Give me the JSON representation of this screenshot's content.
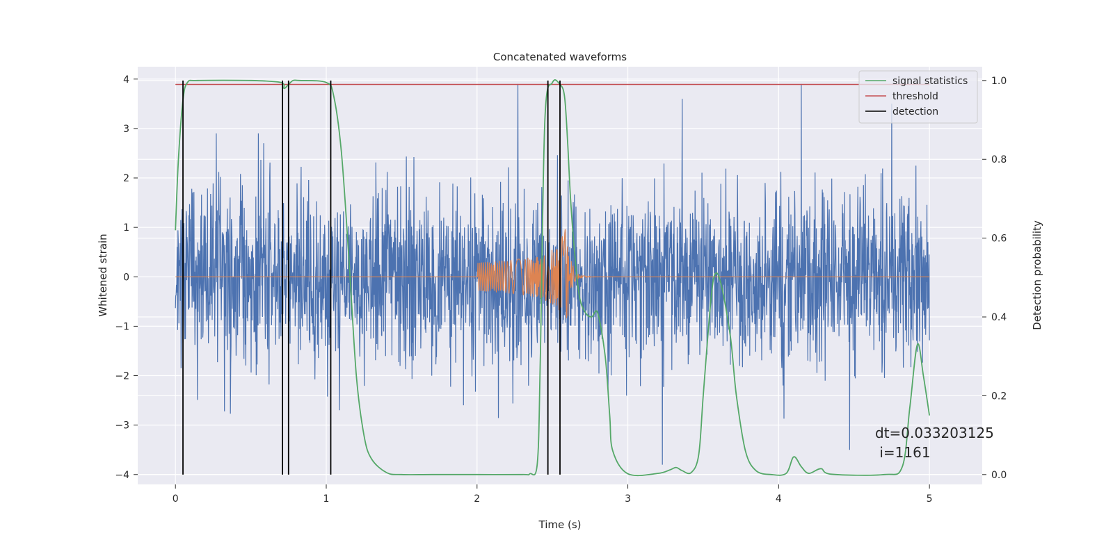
{
  "chart_data": {
    "type": "line",
    "title": "Concatenated waveforms",
    "xlabel": "Time (s)",
    "ylabel": "Whitened strain",
    "y2label": "Detection probability",
    "xlim": [
      -0.25,
      5.35
    ],
    "ylim": [
      -4.2,
      4.25
    ],
    "y2lim": [
      -0.025,
      1.035
    ],
    "xticks": [
      0,
      1,
      2,
      3,
      4,
      5
    ],
    "yticks": [
      -4,
      -3,
      -2,
      -1,
      0,
      1,
      2,
      3,
      4
    ],
    "y2ticks": [
      0.0,
      0.2,
      0.4,
      0.6,
      0.8,
      1.0
    ],
    "y2ticklabels": [
      "0.0",
      "0.2",
      "0.4",
      "0.6",
      "0.8",
      "1.0"
    ],
    "grid": true,
    "legend_position": "top-right",
    "colors": {
      "background": "#eaeaf2",
      "strain": "#4c72b0",
      "injection": "#dd8452",
      "statistics": "#55a868",
      "threshold": "#c44e52",
      "detection": "#000000"
    },
    "series": [
      {
        "name": "",
        "description_key": "whitened-strain",
        "x_range": [
          0,
          5
        ],
        "amplitude_envelope": 2.5,
        "extremes": [
          [
            0.27,
            2.9
          ],
          [
            0.55,
            2.9
          ],
          [
            2.27,
            3.9
          ],
          [
            3.23,
            -3.8
          ],
          [
            3.36,
            3.6
          ],
          [
            4.15,
            3.9
          ],
          [
            4.47,
            -3.5
          ],
          [
            4.75,
            3.5
          ]
        ]
      },
      {
        "name": "",
        "description_key": "injected-chirp",
        "x": [
          2.0,
          2.25,
          2.4,
          2.5,
          2.55,
          2.58,
          2.6,
          2.62,
          2.66,
          2.7,
          2.8
        ],
        "envelope": [
          0.28,
          0.35,
          0.42,
          0.55,
          0.7,
          1.0,
          0.9,
          0.35,
          0.08,
          0.02,
          0.0
        ]
      },
      {
        "name": "signal statistics",
        "axis": "right",
        "x": [
          0.0,
          0.02,
          0.05,
          0.08,
          0.15,
          0.5,
          0.7,
          0.72,
          0.75,
          0.78,
          0.82,
          1.0,
          1.05,
          1.1,
          1.15,
          1.2,
          1.25,
          1.3,
          1.4,
          1.5,
          1.7,
          2.0,
          2.3,
          2.35,
          2.4,
          2.42,
          2.45,
          2.5,
          2.55,
          2.58,
          2.6,
          2.62,
          2.65,
          2.68,
          2.72,
          2.76,
          2.8,
          2.85,
          2.88,
          2.9,
          3.0,
          3.2,
          3.28,
          3.32,
          3.36,
          3.42,
          3.47,
          3.5,
          3.55,
          3.58,
          3.62,
          3.68,
          3.72,
          3.78,
          3.85,
          3.95,
          4.05,
          4.1,
          4.15,
          4.2,
          4.28,
          4.35,
          4.7,
          4.82,
          4.87,
          4.92,
          4.96,
          5.0
        ],
        "y": [
          0.62,
          0.8,
          0.95,
          0.995,
          1.0,
          1.0,
          0.995,
          0.98,
          0.99,
          1.0,
          1.0,
          0.995,
          0.96,
          0.82,
          0.55,
          0.25,
          0.1,
          0.04,
          0.005,
          0.0,
          0.0,
          0.0,
          0.0,
          0.002,
          0.03,
          0.3,
          0.9,
          0.995,
          0.99,
          0.96,
          0.85,
          0.7,
          0.55,
          0.45,
          0.41,
          0.4,
          0.41,
          0.3,
          0.15,
          0.06,
          0.002,
          0.003,
          0.012,
          0.018,
          0.01,
          0.005,
          0.05,
          0.2,
          0.44,
          0.51,
          0.48,
          0.35,
          0.2,
          0.06,
          0.01,
          0.0,
          0.003,
          0.045,
          0.02,
          0.003,
          0.015,
          0.001,
          0.0,
          0.02,
          0.17,
          0.33,
          0.25,
          0.15
        ]
      },
      {
        "name": "threshold",
        "axis": "right",
        "x": [
          0,
          5
        ],
        "y": [
          0.99,
          0.99
        ]
      },
      {
        "name": "detection",
        "axis": "right",
        "type": "vlines",
        "x": [
          0.05,
          0.71,
          0.75,
          1.03,
          2.47,
          2.55
        ],
        "y_range": [
          0.0,
          1.0
        ]
      }
    ],
    "legend": [
      "signal statistics",
      "threshold",
      "detection"
    ],
    "annotation": {
      "line1": "dt=0.033203125",
      "line2": " i=1161"
    }
  }
}
